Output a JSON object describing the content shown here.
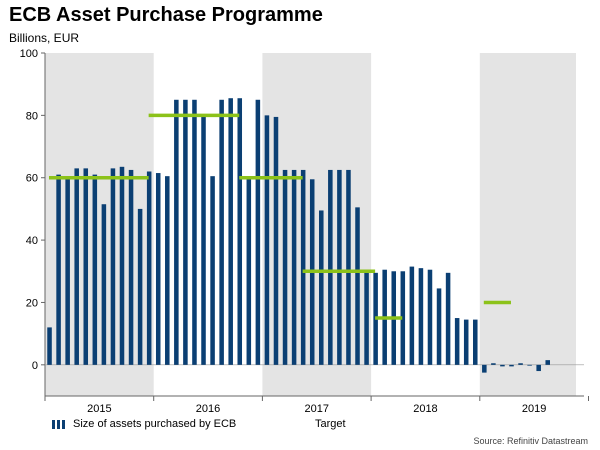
{
  "colors": {
    "bar": "#0b3f73",
    "target": "#8cc21a",
    "band": "#e4e4e4",
    "axis": "#666666"
  },
  "chart_data": {
    "type": "bar",
    "title": "ECB Asset Purchase Programme",
    "ylabel": "Billions, EUR",
    "ylim": [
      -10,
      100
    ],
    "yticks": [
      0,
      20,
      40,
      60,
      80,
      100
    ],
    "years": [
      "2015",
      "2016",
      "2017",
      "2018",
      "2019"
    ],
    "shaded_years": [
      0,
      2,
      4
    ],
    "series": [
      {
        "name": "Size of assets purchased by ECB",
        "start_month_index": 0,
        "values": [
          12,
          61,
          60,
          63,
          63,
          61,
          51.5,
          63,
          63.5,
          62.5,
          50,
          62,
          61.5,
          60.5,
          85,
          85,
          85,
          80,
          60.5,
          85,
          85.5,
          85.5,
          60.5,
          85,
          80,
          79.5,
          62.5,
          62.5,
          62.5,
          59.5,
          49.5,
          62.5,
          62.5,
          62.5,
          50.5,
          30,
          29.5,
          30.5,
          30,
          30,
          31.5,
          31,
          30.5,
          24.5,
          29.5,
          15,
          14.5,
          14.5,
          -2.5,
          0.5,
          -0.5,
          -0.5,
          0.5,
          0,
          -2,
          1.5
        ]
      },
      {
        "name": "Target",
        "segments": [
          {
            "from_month": 0,
            "to_month": 11,
            "value": 60
          },
          {
            "from_month": 11,
            "to_month": 21,
            "value": 80
          },
          {
            "from_month": 21,
            "to_month": 28,
            "value": 60
          },
          {
            "from_month": 28,
            "to_month": 36,
            "value": 30
          },
          {
            "from_month": 36,
            "to_month": 39,
            "value": 15
          },
          {
            "from_month": 48,
            "to_month": 51,
            "value": 20
          }
        ]
      }
    ]
  },
  "legend": {
    "bars_label": "Size of assets purchased by ECB",
    "target_label": "Target"
  },
  "source": "Source: Refinitiv Datastream"
}
